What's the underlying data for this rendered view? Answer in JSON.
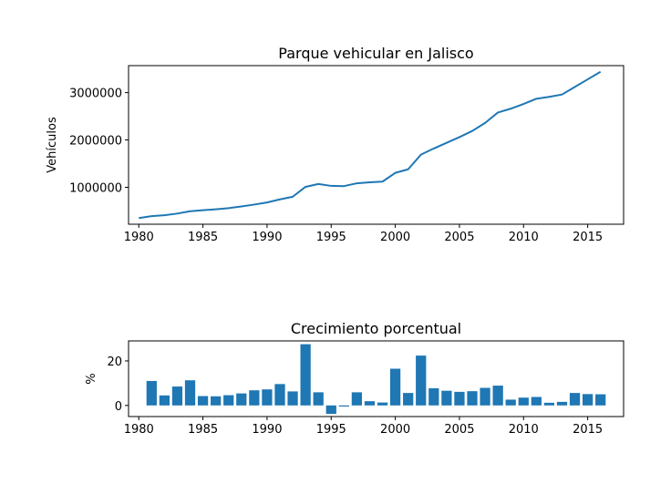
{
  "chart_data": [
    {
      "type": "line",
      "title": "Parque vehicular en Jalisco",
      "xlabel": "",
      "ylabel": "Vehículos",
      "xlim": [
        1979.2,
        2017.8
      ],
      "ylim": [
        220000,
        3570000
      ],
      "xticks": [
        1980,
        1985,
        1990,
        1995,
        2000,
        2005,
        2010,
        2015
      ],
      "yticks": [
        1000000,
        2000000,
        3000000
      ],
      "ytick_labels": [
        "1000000",
        "2000000",
        "3000000"
      ],
      "grid": false,
      "color": "#1f77b4",
      "x": [
        1980,
        1981,
        1982,
        1983,
        1984,
        1985,
        1986,
        1987,
        1988,
        1989,
        1990,
        1991,
        1992,
        1993,
        1994,
        1995,
        1996,
        1997,
        1998,
        1999,
        2000,
        2001,
        2002,
        2003,
        2004,
        2005,
        2006,
        2007,
        2008,
        2009,
        2010,
        2011,
        2012,
        2013,
        2014,
        2015,
        2016
      ],
      "y": [
        350000,
        390000,
        410000,
        445000,
        495000,
        515000,
        535000,
        560000,
        595000,
        635000,
        680000,
        745000,
        800000,
        1010000,
        1070000,
        1030000,
        1025000,
        1085000,
        1105000,
        1120000,
        1305000,
        1380000,
        1690000,
        1820000,
        1940000,
        2060000,
        2190000,
        2360000,
        2580000,
        2660000,
        2760000,
        2870000,
        2910000,
        2960000,
        3120000,
        3280000,
        3440000
      ]
    },
    {
      "type": "bar",
      "title": "Crecimiento porcentual",
      "xlabel": "",
      "ylabel": "%",
      "xlim": [
        1979.2,
        2017.8
      ],
      "ylim": [
        -5,
        29
      ],
      "xticks": [
        1980,
        1985,
        1990,
        1995,
        2000,
        2005,
        2010,
        2015
      ],
      "yticks": [
        0,
        20
      ],
      "grid": false,
      "color": "#1f77b4",
      "x": [
        1981,
        1982,
        1983,
        1984,
        1985,
        1986,
        1987,
        1988,
        1989,
        1990,
        1991,
        1992,
        1993,
        1994,
        1995,
        1996,
        1997,
        1998,
        1999,
        2000,
        2001,
        2002,
        2003,
        2004,
        2005,
        2006,
        2007,
        2008,
        2009,
        2010,
        2011,
        2012,
        2013,
        2014,
        2015,
        2016
      ],
      "values": [
        11,
        4.5,
        8.5,
        11.3,
        4.2,
        4.1,
        4.6,
        5.4,
        6.8,
        7.2,
        9.6,
        6.3,
        27.5,
        5.9,
        -3.8,
        -0.5,
        5.9,
        1.9,
        1.3,
        16.5,
        5.6,
        22.4,
        7.7,
        6.6,
        6.1,
        6.4,
        7.9,
        8.9,
        2.6,
        3.5,
        3.8,
        1.2,
        1.6,
        5.6,
        5.1,
        5.0
      ]
    }
  ]
}
